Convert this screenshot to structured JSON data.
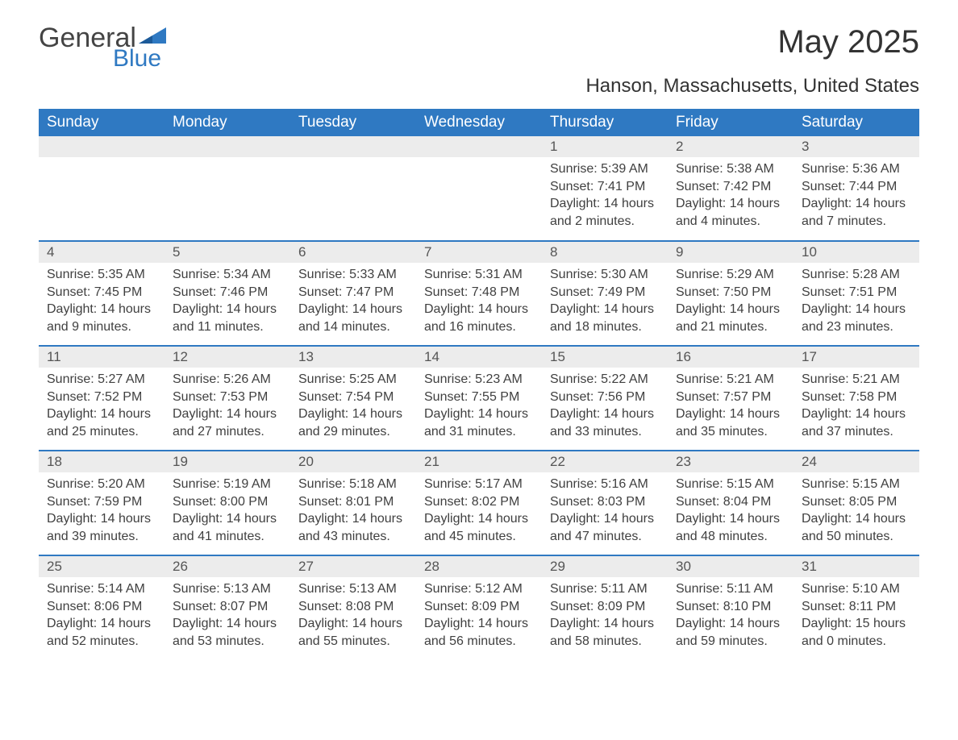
{
  "logo": {
    "general": "General",
    "blue": "Blue"
  },
  "title": "May 2025",
  "location": "Hanson, Massachusetts, United States",
  "colors": {
    "header_bg": "#2f79c2",
    "header_fg": "#ffffff",
    "daynum_bg": "#ececec",
    "row_divider": "#2f79c2",
    "text": "#333333",
    "logo_blue": "#2f79c2",
    "logo_gray": "#444444",
    "page_bg": "#ffffff"
  },
  "labels": {
    "sunrise": "Sunrise: ",
    "sunset": "Sunset: ",
    "daylight": "Daylight: "
  },
  "weekdays": [
    "Sunday",
    "Monday",
    "Tuesday",
    "Wednesday",
    "Thursday",
    "Friday",
    "Saturday"
  ],
  "weeks": [
    [
      null,
      null,
      null,
      null,
      {
        "n": "1",
        "sunrise": "5:39 AM",
        "sunset": "7:41 PM",
        "daylight": "14 hours and 2 minutes."
      },
      {
        "n": "2",
        "sunrise": "5:38 AM",
        "sunset": "7:42 PM",
        "daylight": "14 hours and 4 minutes."
      },
      {
        "n": "3",
        "sunrise": "5:36 AM",
        "sunset": "7:44 PM",
        "daylight": "14 hours and 7 minutes."
      }
    ],
    [
      {
        "n": "4",
        "sunrise": "5:35 AM",
        "sunset": "7:45 PM",
        "daylight": "14 hours and 9 minutes."
      },
      {
        "n": "5",
        "sunrise": "5:34 AM",
        "sunset": "7:46 PM",
        "daylight": "14 hours and 11 minutes."
      },
      {
        "n": "6",
        "sunrise": "5:33 AM",
        "sunset": "7:47 PM",
        "daylight": "14 hours and 14 minutes."
      },
      {
        "n": "7",
        "sunrise": "5:31 AM",
        "sunset": "7:48 PM",
        "daylight": "14 hours and 16 minutes."
      },
      {
        "n": "8",
        "sunrise": "5:30 AM",
        "sunset": "7:49 PM",
        "daylight": "14 hours and 18 minutes."
      },
      {
        "n": "9",
        "sunrise": "5:29 AM",
        "sunset": "7:50 PM",
        "daylight": "14 hours and 21 minutes."
      },
      {
        "n": "10",
        "sunrise": "5:28 AM",
        "sunset": "7:51 PM",
        "daylight": "14 hours and 23 minutes."
      }
    ],
    [
      {
        "n": "11",
        "sunrise": "5:27 AM",
        "sunset": "7:52 PM",
        "daylight": "14 hours and 25 minutes."
      },
      {
        "n": "12",
        "sunrise": "5:26 AM",
        "sunset": "7:53 PM",
        "daylight": "14 hours and 27 minutes."
      },
      {
        "n": "13",
        "sunrise": "5:25 AM",
        "sunset": "7:54 PM",
        "daylight": "14 hours and 29 minutes."
      },
      {
        "n": "14",
        "sunrise": "5:23 AM",
        "sunset": "7:55 PM",
        "daylight": "14 hours and 31 minutes."
      },
      {
        "n": "15",
        "sunrise": "5:22 AM",
        "sunset": "7:56 PM",
        "daylight": "14 hours and 33 minutes."
      },
      {
        "n": "16",
        "sunrise": "5:21 AM",
        "sunset": "7:57 PM",
        "daylight": "14 hours and 35 minutes."
      },
      {
        "n": "17",
        "sunrise": "5:21 AM",
        "sunset": "7:58 PM",
        "daylight": "14 hours and 37 minutes."
      }
    ],
    [
      {
        "n": "18",
        "sunrise": "5:20 AM",
        "sunset": "7:59 PM",
        "daylight": "14 hours and 39 minutes."
      },
      {
        "n": "19",
        "sunrise": "5:19 AM",
        "sunset": "8:00 PM",
        "daylight": "14 hours and 41 minutes."
      },
      {
        "n": "20",
        "sunrise": "5:18 AM",
        "sunset": "8:01 PM",
        "daylight": "14 hours and 43 minutes."
      },
      {
        "n": "21",
        "sunrise": "5:17 AM",
        "sunset": "8:02 PM",
        "daylight": "14 hours and 45 minutes."
      },
      {
        "n": "22",
        "sunrise": "5:16 AM",
        "sunset": "8:03 PM",
        "daylight": "14 hours and 47 minutes."
      },
      {
        "n": "23",
        "sunrise": "5:15 AM",
        "sunset": "8:04 PM",
        "daylight": "14 hours and 48 minutes."
      },
      {
        "n": "24",
        "sunrise": "5:15 AM",
        "sunset": "8:05 PM",
        "daylight": "14 hours and 50 minutes."
      }
    ],
    [
      {
        "n": "25",
        "sunrise": "5:14 AM",
        "sunset": "8:06 PM",
        "daylight": "14 hours and 52 minutes."
      },
      {
        "n": "26",
        "sunrise": "5:13 AM",
        "sunset": "8:07 PM",
        "daylight": "14 hours and 53 minutes."
      },
      {
        "n": "27",
        "sunrise": "5:13 AM",
        "sunset": "8:08 PM",
        "daylight": "14 hours and 55 minutes."
      },
      {
        "n": "28",
        "sunrise": "5:12 AM",
        "sunset": "8:09 PM",
        "daylight": "14 hours and 56 minutes."
      },
      {
        "n": "29",
        "sunrise": "5:11 AM",
        "sunset": "8:09 PM",
        "daylight": "14 hours and 58 minutes."
      },
      {
        "n": "30",
        "sunrise": "5:11 AM",
        "sunset": "8:10 PM",
        "daylight": "14 hours and 59 minutes."
      },
      {
        "n": "31",
        "sunrise": "5:10 AM",
        "sunset": "8:11 PM",
        "daylight": "15 hours and 0 minutes."
      }
    ]
  ]
}
